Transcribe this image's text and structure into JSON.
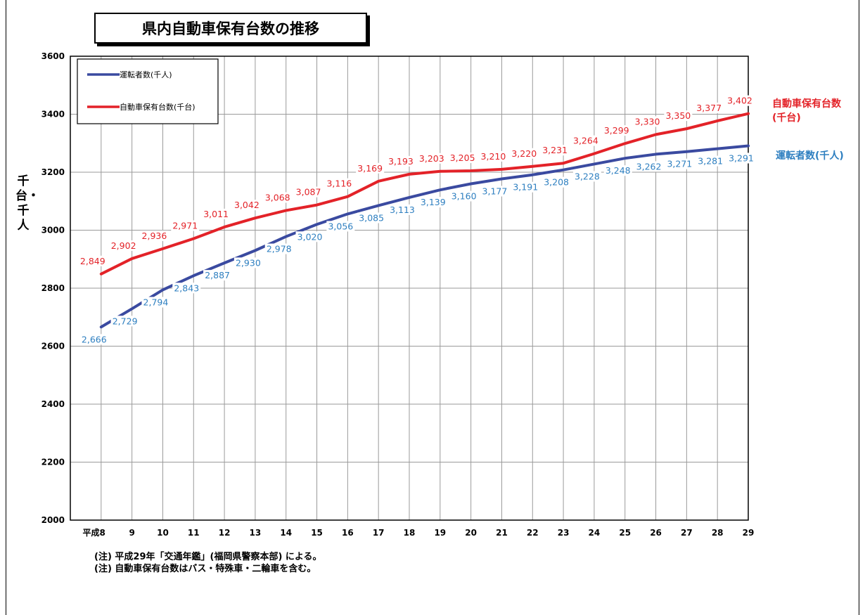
{
  "title": "県内自動車保有台数の推移",
  "notes": [
    "(注) 平成29年「交通年鑑」(福岡県警察本部) による。",
    "(注) 自動車保有台数はバス・特殊車・二輪車を含む。"
  ],
  "chart_data": {
    "type": "line",
    "title": "県内自動車保有台数の推移",
    "ylabel": "千台・千人",
    "xlabel": "",
    "ylim": [
      2000,
      3600
    ],
    "yticks": [
      2000,
      2200,
      2400,
      2600,
      2800,
      3000,
      3200,
      3400,
      3600
    ],
    "categories": [
      "平成8",
      "9",
      "10",
      "11",
      "12",
      "13",
      "14",
      "15",
      "16",
      "17",
      "18",
      "19",
      "20",
      "21",
      "22",
      "23",
      "24",
      "25",
      "26",
      "27",
      "28",
      "29"
    ],
    "grid": true,
    "legend_position": "top-left",
    "series": [
      {
        "name": "運転者数(千人)",
        "end_label": "運転者数(千人)",
        "line_color": "#3a4aa0",
        "label_color": "#2e7fc0",
        "values": [
          2666,
          2729,
          2794,
          2843,
          2887,
          2930,
          2978,
          3020,
          3056,
          3085,
          3113,
          3139,
          3160,
          3177,
          3191,
          3208,
          3228,
          3248,
          3262,
          3271,
          3281,
          3291
        ],
        "labels": [
          "2,666",
          "2,729",
          "2,794",
          "2,843",
          "2,887",
          "2,930",
          "2,978",
          "3,020",
          "3,056",
          "3,085",
          "3,113",
          "3,139",
          "3,160",
          "3,177",
          "3,191",
          "3,208",
          "3,228",
          "3,248",
          "3,262",
          "3,271",
          "3,281",
          "3,291"
        ]
      },
      {
        "name": "自動車保有台数(千台)",
        "end_label": "自動車保有台数(千台)",
        "line_color": "#e32228",
        "label_color": "#e32228",
        "values": [
          2849,
          2902,
          2936,
          2971,
          3011,
          3042,
          3068,
          3087,
          3116,
          3169,
          3193,
          3203,
          3205,
          3210,
          3220,
          3231,
          3264,
          3299,
          3330,
          3350,
          3377,
          3402
        ],
        "labels": [
          "2,849",
          "2,902",
          "2,936",
          "2,971",
          "3,011",
          "3,042",
          "3,068",
          "3,087",
          "3,116",
          "3,169",
          "3,193",
          "3,203",
          "3,205",
          "3,210",
          "3,220",
          "3,231",
          "3,264",
          "3,299",
          "3,330",
          "3,350",
          "3,377",
          "3,402"
        ]
      }
    ]
  }
}
